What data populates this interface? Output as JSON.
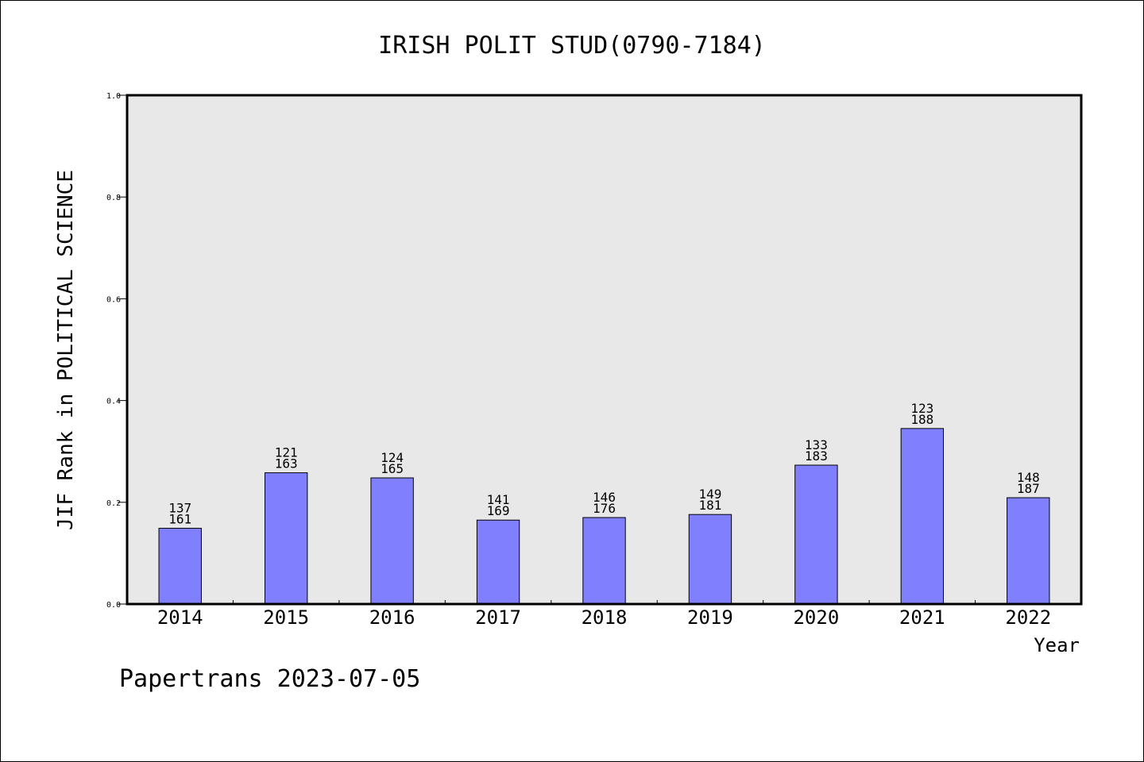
{
  "chart_data": {
    "type": "bar",
    "title": "IRISH POLIT STUD(0790-7184)",
    "xlabel": "Year",
    "ylabel": "JIF Rank in POLITICAL SCIENCE",
    "categories": [
      "2014",
      "2015",
      "2016",
      "2017",
      "2018",
      "2019",
      "2020",
      "2021",
      "2022"
    ],
    "values": [
      0.149,
      0.258,
      0.248,
      0.165,
      0.17,
      0.176,
      0.273,
      0.345,
      0.209
    ],
    "rank_labels": [
      [
        "137",
        "161"
      ],
      [
        "121",
        "163"
      ],
      [
        "124",
        "165"
      ],
      [
        "141",
        "169"
      ],
      [
        "146",
        "176"
      ],
      [
        "149",
        "181"
      ],
      [
        "133",
        "183"
      ],
      [
        "123",
        "188"
      ],
      [
        "148",
        "187"
      ]
    ],
    "ylim": [
      0,
      1.0
    ],
    "yticks": [
      "0.0",
      "0.2",
      "0.4",
      "0.6",
      "0.8",
      "1.0"
    ],
    "grid": false,
    "legend": "none",
    "colors": {
      "bar_fill": "#8080ff",
      "bar_stroke": "#000000",
      "plot_background": "#e8e8e8",
      "axis": "#000000"
    }
  },
  "watermark": "Papertrans 2023-07-05"
}
